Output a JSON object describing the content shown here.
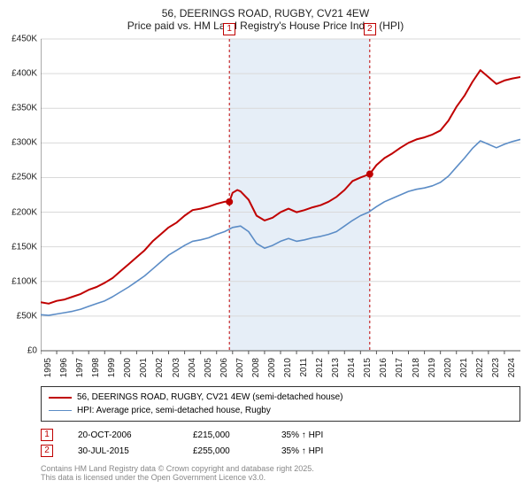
{
  "title": {
    "line1": "56, DEERINGS ROAD, RUGBY, CV21 4EW",
    "line2": "Price paid vs. HM Land Registry's House Price Index (HPI)"
  },
  "chart": {
    "type": "line",
    "background_color": "#ffffff",
    "axis_color": "#555555",
    "grid_color": "#d9d9d9",
    "highlight_band_color": "#e6eef7",
    "highlight_band": {
      "x_start": 2006.8,
      "x_end": 2015.6
    },
    "xlim": [
      1995,
      2025
    ],
    "ylim": [
      0,
      450000
    ],
    "y_ticks": [
      0,
      50000,
      100000,
      150000,
      200000,
      250000,
      300000,
      350000,
      400000,
      450000
    ],
    "y_tick_labels": [
      "£0",
      "£50K",
      "£100K",
      "£150K",
      "£200K",
      "£250K",
      "£300K",
      "£350K",
      "£400K",
      "£450K"
    ],
    "x_ticks": [
      1995,
      1996,
      1997,
      1998,
      1999,
      2000,
      2001,
      2002,
      2003,
      2004,
      2005,
      2006,
      2007,
      2008,
      2009,
      2010,
      2011,
      2012,
      2013,
      2014,
      2015,
      2016,
      2017,
      2018,
      2019,
      2020,
      2021,
      2022,
      2023,
      2024
    ],
    "label_fontsize": 10,
    "series": [
      {
        "name": "price_paid",
        "label": "56, DEERINGS ROAD, RUGBY, CV21 4EW (semi-detached house)",
        "color": "#c00000",
        "line_width": 2,
        "points": [
          [
            1995,
            70000
          ],
          [
            1995.5,
            68000
          ],
          [
            1996,
            72000
          ],
          [
            1996.5,
            74000
          ],
          [
            1997,
            78000
          ],
          [
            1997.5,
            82000
          ],
          [
            1998,
            88000
          ],
          [
            1998.5,
            92000
          ],
          [
            1999,
            98000
          ],
          [
            1999.5,
            105000
          ],
          [
            2000,
            115000
          ],
          [
            2000.5,
            125000
          ],
          [
            2001,
            135000
          ],
          [
            2001.5,
            145000
          ],
          [
            2002,
            158000
          ],
          [
            2002.5,
            168000
          ],
          [
            2003,
            178000
          ],
          [
            2003.5,
            185000
          ],
          [
            2004,
            195000
          ],
          [
            2004.5,
            203000
          ],
          [
            2005,
            205000
          ],
          [
            2005.5,
            208000
          ],
          [
            2006,
            212000
          ],
          [
            2006.5,
            215000
          ],
          [
            2006.8,
            215000
          ],
          [
            2007,
            228000
          ],
          [
            2007.3,
            232000
          ],
          [
            2007.5,
            230000
          ],
          [
            2008,
            218000
          ],
          [
            2008.5,
            195000
          ],
          [
            2009,
            188000
          ],
          [
            2009.5,
            192000
          ],
          [
            2010,
            200000
          ],
          [
            2010.5,
            205000
          ],
          [
            2011,
            200000
          ],
          [
            2011.5,
            203000
          ],
          [
            2012,
            207000
          ],
          [
            2012.5,
            210000
          ],
          [
            2013,
            215000
          ],
          [
            2013.5,
            222000
          ],
          [
            2014,
            232000
          ],
          [
            2014.5,
            245000
          ],
          [
            2015,
            250000
          ],
          [
            2015.58,
            255000
          ],
          [
            2016,
            268000
          ],
          [
            2016.5,
            278000
          ],
          [
            2017,
            285000
          ],
          [
            2017.5,
            293000
          ],
          [
            2018,
            300000
          ],
          [
            2018.5,
            305000
          ],
          [
            2019,
            308000
          ],
          [
            2019.5,
            312000
          ],
          [
            2020,
            318000
          ],
          [
            2020.5,
            332000
          ],
          [
            2021,
            352000
          ],
          [
            2021.5,
            368000
          ],
          [
            2022,
            388000
          ],
          [
            2022.5,
            405000
          ],
          [
            2023,
            395000
          ],
          [
            2023.5,
            385000
          ],
          [
            2024,
            390000
          ],
          [
            2024.5,
            393000
          ],
          [
            2025,
            395000
          ]
        ],
        "sale_markers": [
          {
            "num": "1",
            "x": 2006.8,
            "y": 215000
          },
          {
            "num": "2",
            "x": 2015.58,
            "y": 255000
          }
        ]
      },
      {
        "name": "hpi",
        "label": "HPI: Average price, semi-detached house, Rugby",
        "color": "#5b8cc6",
        "line_width": 1.6,
        "points": [
          [
            1995,
            52000
          ],
          [
            1995.5,
            51000
          ],
          [
            1996,
            53000
          ],
          [
            1996.5,
            55000
          ],
          [
            1997,
            57000
          ],
          [
            1997.5,
            60000
          ],
          [
            1998,
            64000
          ],
          [
            1998.5,
            68000
          ],
          [
            1999,
            72000
          ],
          [
            1999.5,
            78000
          ],
          [
            2000,
            85000
          ],
          [
            2000.5,
            92000
          ],
          [
            2001,
            100000
          ],
          [
            2001.5,
            108000
          ],
          [
            2002,
            118000
          ],
          [
            2002.5,
            128000
          ],
          [
            2003,
            138000
          ],
          [
            2003.5,
            145000
          ],
          [
            2004,
            152000
          ],
          [
            2004.5,
            158000
          ],
          [
            2005,
            160000
          ],
          [
            2005.5,
            163000
          ],
          [
            2006,
            168000
          ],
          [
            2006.5,
            172000
          ],
          [
            2007,
            178000
          ],
          [
            2007.5,
            180000
          ],
          [
            2008,
            172000
          ],
          [
            2008.5,
            155000
          ],
          [
            2009,
            148000
          ],
          [
            2009.5,
            152000
          ],
          [
            2010,
            158000
          ],
          [
            2010.5,
            162000
          ],
          [
            2011,
            158000
          ],
          [
            2011.5,
            160000
          ],
          [
            2012,
            163000
          ],
          [
            2012.5,
            165000
          ],
          [
            2013,
            168000
          ],
          [
            2013.5,
            172000
          ],
          [
            2014,
            180000
          ],
          [
            2014.5,
            188000
          ],
          [
            2015,
            195000
          ],
          [
            2015.5,
            200000
          ],
          [
            2016,
            208000
          ],
          [
            2016.5,
            215000
          ],
          [
            2017,
            220000
          ],
          [
            2017.5,
            225000
          ],
          [
            2018,
            230000
          ],
          [
            2018.5,
            233000
          ],
          [
            2019,
            235000
          ],
          [
            2019.5,
            238000
          ],
          [
            2020,
            243000
          ],
          [
            2020.5,
            252000
          ],
          [
            2021,
            265000
          ],
          [
            2021.5,
            278000
          ],
          [
            2022,
            292000
          ],
          [
            2022.5,
            303000
          ],
          [
            2023,
            298000
          ],
          [
            2023.5,
            293000
          ],
          [
            2024,
            298000
          ],
          [
            2024.5,
            302000
          ],
          [
            2025,
            305000
          ]
        ]
      }
    ],
    "marker_dashed_color": "#c00000"
  },
  "legend": {
    "border_color": "#333333"
  },
  "sales": [
    {
      "num": "1",
      "date": "20-OCT-2006",
      "price": "£215,000",
      "pct": "35% ↑ HPI"
    },
    {
      "num": "2",
      "date": "30-JUL-2015",
      "price": "£255,000",
      "pct": "35% ↑ HPI"
    }
  ],
  "footer": {
    "line1": "Contains HM Land Registry data © Crown copyright and database right 2025.",
    "line2": "This data is licensed under the Open Government Licence v3.0."
  }
}
